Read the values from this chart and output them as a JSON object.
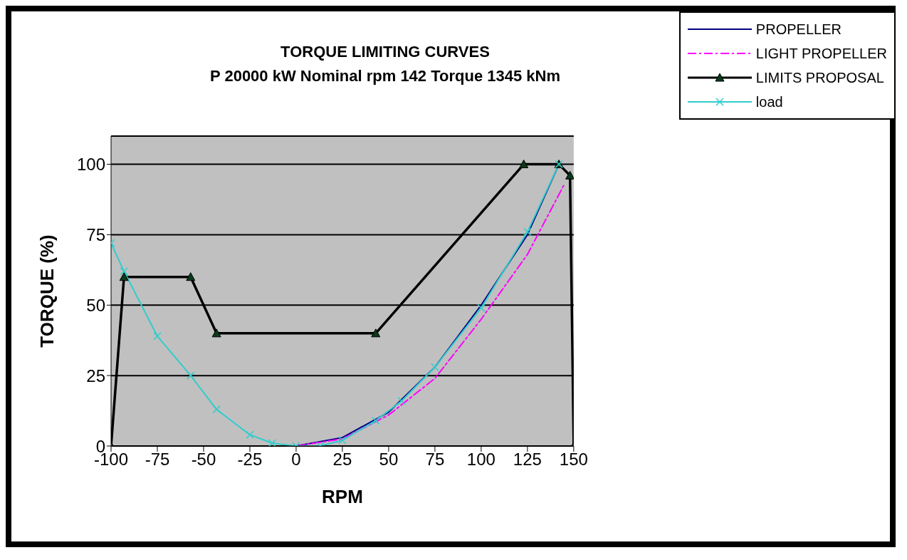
{
  "chart_data": {
    "type": "line",
    "title": "TORQUE LIMITING CURVES",
    "subtitle": "P 20000 kW Nominal rpm 142 Torque 1345 kNm",
    "xlabel": "RPM",
    "ylabel": "TORQUE (%)",
    "xlim": [
      -100,
      150
    ],
    "xticks": [
      -100,
      -75,
      -50,
      -25,
      0,
      25,
      50,
      75,
      100,
      125,
      150
    ],
    "ylim": [
      0,
      110
    ],
    "yticks": [
      0,
      25,
      50,
      75,
      100
    ],
    "grid": "y",
    "legend": "top right",
    "series": [
      {
        "name": "PROPELLER",
        "color": "#000080",
        "marker": "none",
        "line_style": "solid",
        "x": [
          0,
          25,
          50,
          75,
          100,
          125,
          142
        ],
        "values": [
          0,
          3,
          12,
          28,
          50,
          75,
          100
        ]
      },
      {
        "name": "LIGHT PROPELLER",
        "color": "#ff00ff",
        "marker": "none",
        "line_style": "dashed",
        "x": [
          0,
          25,
          50,
          75,
          100,
          125,
          145
        ],
        "values": [
          0,
          2.5,
          11,
          24,
          45,
          68,
          93
        ]
      },
      {
        "name": "LIMITS PROPOSAL",
        "color": "#000000",
        "marker": "triangle",
        "line_style": "solid",
        "x": [
          -100,
          -93,
          -57,
          -43,
          43,
          123,
          142,
          148,
          150
        ],
        "values": [
          0,
          60,
          60,
          40,
          40,
          100,
          100,
          96,
          0
        ]
      },
      {
        "name": "load",
        "color": "#33cccc",
        "marker": "cross",
        "line_style": "solid",
        "x": [
          -100,
          -93,
          -75,
          -57,
          -43,
          -25,
          -13,
          0,
          13,
          25,
          43,
          57,
          75,
          100,
          125,
          142
        ],
        "values": [
          72,
          62,
          39,
          25,
          13,
          4,
          1,
          0,
          0,
          2,
          9,
          16,
          28,
          49,
          76,
          100
        ]
      }
    ]
  }
}
